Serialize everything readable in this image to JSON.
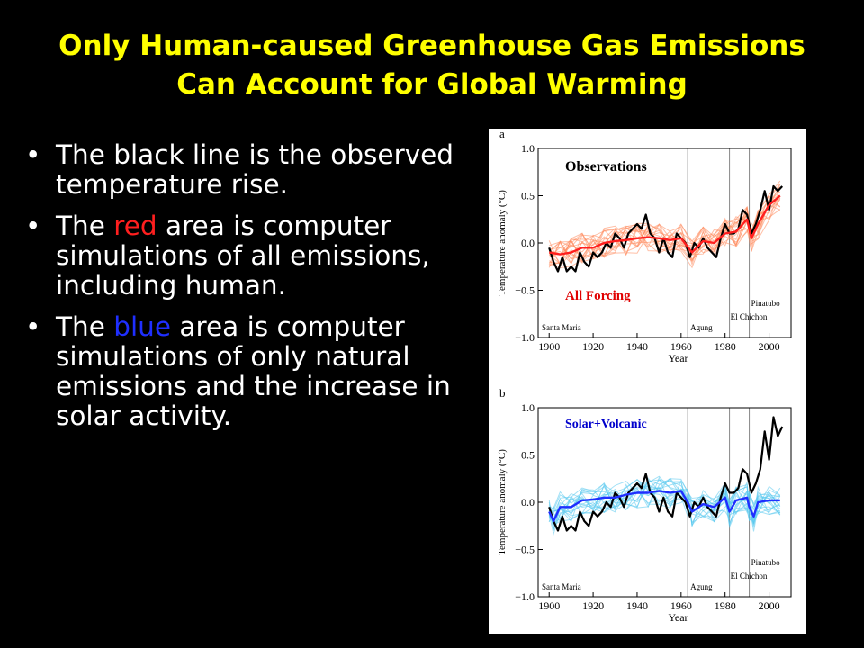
{
  "slide": {
    "title_line1": "Only Human-caused Greenhouse Gas Emissions",
    "title_line2": "Can Account for Global Warming",
    "bullets": [
      {
        "before": "The black line is the observed temperature rise.",
        "highlight": "",
        "after": "",
        "highlight_color": ""
      },
      {
        "before": "The ",
        "highlight": "red",
        "after": " area is computer simulations of all emissions, including human.",
        "highlight_color": "#ff1f1f"
      },
      {
        "before": "The ",
        "highlight": "blue",
        "after": " area is computer simulations of only natural emissions and the  increase in solar activity.",
        "highlight_color": "#1f2fff"
      }
    ],
    "bullet_glyph": "•"
  },
  "colors": {
    "background": "#000000",
    "title": "#ffff00",
    "text": "#ffffff",
    "red": "#ff1f1f",
    "blue": "#1f2fff"
  },
  "chart_data": [
    {
      "type": "line",
      "panel": "a",
      "title": "Observations",
      "annotation": "All Forcing",
      "xlabel": "Year",
      "ylabel": "Temperature anomaly (°C)",
      "xlim": [
        1895,
        2010
      ],
      "ylim": [
        -1.0,
        1.0
      ],
      "xticks": [
        "1900",
        "1920",
        "1940",
        "1960",
        "1980",
        "2000"
      ],
      "yticks": [
        "1.0",
        "0.5",
        "0.0",
        "−0.5",
        "−1.0"
      ],
      "eruptions": [
        {
          "name": "Santa Maria",
          "year": 1902
        },
        {
          "name": "Agung",
          "year": 1963
        },
        {
          "name": "El Chichon",
          "year": 1982
        },
        {
          "name": "Pinatubo",
          "year": 1991
        }
      ],
      "series": [
        {
          "name": "",
          "color": "#000000",
          "x": [
            1900,
            1902,
            1904,
            1906,
            1908,
            1910,
            1912,
            1914,
            1916,
            1918,
            1920,
            1922,
            1924,
            1926,
            1928,
            1930,
            1932,
            1934,
            1936,
            1938,
            1940,
            1942,
            1944,
            1946,
            1948,
            1950,
            1952,
            1954,
            1956,
            1958,
            1960,
            1962,
            1964,
            1966,
            1968,
            1970,
            1972,
            1974,
            1976,
            1978,
            1980,
            1982,
            1984,
            1986,
            1988,
            1990,
            1992,
            1994,
            1996,
            1998,
            2000,
            2002,
            2004,
            2006
          ],
          "y": [
            -0.05,
            -0.2,
            -0.3,
            -0.15,
            -0.3,
            -0.25,
            -0.3,
            -0.1,
            -0.2,
            -0.25,
            -0.1,
            -0.15,
            -0.1,
            0.0,
            -0.05,
            0.1,
            0.05,
            -0.05,
            0.1,
            0.15,
            0.2,
            0.15,
            0.3,
            0.1,
            0.05,
            -0.1,
            0.05,
            -0.1,
            -0.15,
            0.1,
            0.05,
            0.0,
            -0.15,
            0.0,
            -0.05,
            0.05,
            -0.05,
            -0.1,
            -0.15,
            0.05,
            0.2,
            0.1,
            0.1,
            0.15,
            0.35,
            0.3,
            0.1,
            0.2,
            0.35,
            0.55,
            0.35,
            0.6,
            0.55,
            0.6
          ]
        },
        {
          "name": "",
          "color": "#ff1f1f",
          "x": [
            1900,
            1905,
            1910,
            1915,
            1920,
            1925,
            1930,
            1935,
            1940,
            1945,
            1950,
            1955,
            1960,
            1965,
            1970,
            1975,
            1980,
            1985,
            1990,
            1992,
            1995,
            2000,
            2005
          ],
          "y": [
            -0.1,
            -0.12,
            -0.1,
            -0.05,
            -0.05,
            0.0,
            0.02,
            0.03,
            0.05,
            0.06,
            0.05,
            0.03,
            0.05,
            -0.1,
            0.02,
            0.0,
            0.1,
            0.12,
            0.25,
            0.05,
            0.2,
            0.4,
            0.5
          ]
        }
      ]
    },
    {
      "type": "line",
      "panel": "b",
      "title": "",
      "annotation": "Solar+Volcanic",
      "xlabel": "Year",
      "ylabel": "Temperature anomaly (°C)",
      "xlim": [
        1895,
        2010
      ],
      "ylim": [
        -1.0,
        1.0
      ],
      "xticks": [
        "1900",
        "1920",
        "1940",
        "1960",
        "1980",
        "2000"
      ],
      "yticks": [
        "1.0",
        "0.5",
        "0.0",
        "−0.5",
        "−1.0"
      ],
      "eruptions": [
        {
          "name": "Santa Maria",
          "year": 1902
        },
        {
          "name": "Agung",
          "year": 1963
        },
        {
          "name": "El Chichon",
          "year": 1982
        },
        {
          "name": "Pinatubo",
          "year": 1991
        }
      ],
      "series": [
        {
          "name": "",
          "color": "#000000",
          "x": [
            1900,
            1902,
            1904,
            1906,
            1908,
            1910,
            1912,
            1914,
            1916,
            1918,
            1920,
            1922,
            1924,
            1926,
            1928,
            1930,
            1932,
            1934,
            1936,
            1938,
            1940,
            1942,
            1944,
            1946,
            1948,
            1950,
            1952,
            1954,
            1956,
            1958,
            1960,
            1962,
            1964,
            1966,
            1968,
            1970,
            1972,
            1974,
            1976,
            1978,
            1980,
            1982,
            1984,
            1986,
            1988,
            1990,
            1992,
            1994,
            1996,
            1998,
            2000,
            2002,
            2004,
            2006
          ],
          "y": [
            -0.05,
            -0.2,
            -0.3,
            -0.15,
            -0.3,
            -0.25,
            -0.3,
            -0.1,
            -0.2,
            -0.25,
            -0.1,
            -0.15,
            -0.1,
            0.0,
            -0.05,
            0.1,
            0.05,
            -0.05,
            0.1,
            0.15,
            0.2,
            0.15,
            0.3,
            0.1,
            0.05,
            -0.1,
            0.05,
            -0.1,
            -0.15,
            0.1,
            0.05,
            0.0,
            -0.15,
            0.0,
            -0.05,
            0.05,
            -0.05,
            -0.1,
            -0.15,
            0.05,
            0.2,
            0.1,
            0.1,
            0.15,
            0.35,
            0.3,
            0.1,
            0.2,
            0.35,
            0.75,
            0.45,
            0.9,
            0.7,
            0.8
          ]
        },
        {
          "name": "",
          "color": "#1f2fff",
          "x": [
            1900,
            1902,
            1905,
            1910,
            1915,
            1920,
            1925,
            1930,
            1935,
            1940,
            1945,
            1950,
            1955,
            1960,
            1963,
            1965,
            1970,
            1975,
            1980,
            1982,
            1985,
            1990,
            1991,
            1993,
            1995,
            2000,
            2005
          ],
          "y": [
            -0.1,
            -0.2,
            -0.05,
            -0.05,
            0.02,
            0.03,
            0.05,
            0.05,
            0.08,
            0.1,
            0.1,
            0.12,
            0.1,
            0.12,
            0.0,
            -0.1,
            -0.02,
            -0.05,
            0.05,
            -0.1,
            0.02,
            0.05,
            -0.05,
            -0.15,
            0.0,
            0.02,
            0.02
          ]
        }
      ]
    }
  ]
}
